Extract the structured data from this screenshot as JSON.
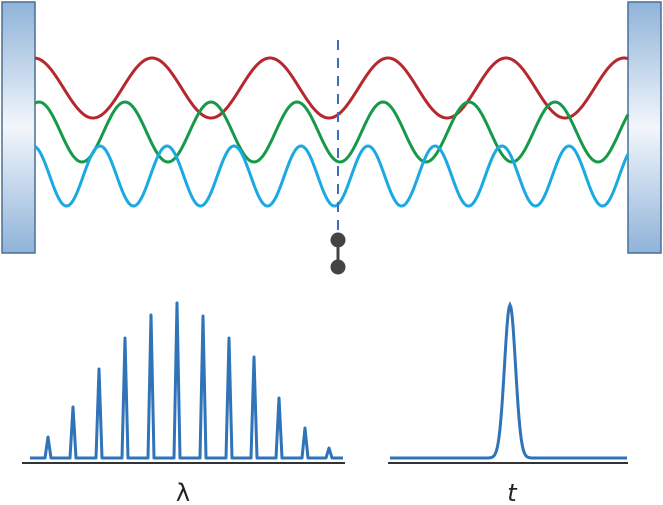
{
  "labels": {
    "spectrum_axis": "λ",
    "time_axis": "t"
  }
}
